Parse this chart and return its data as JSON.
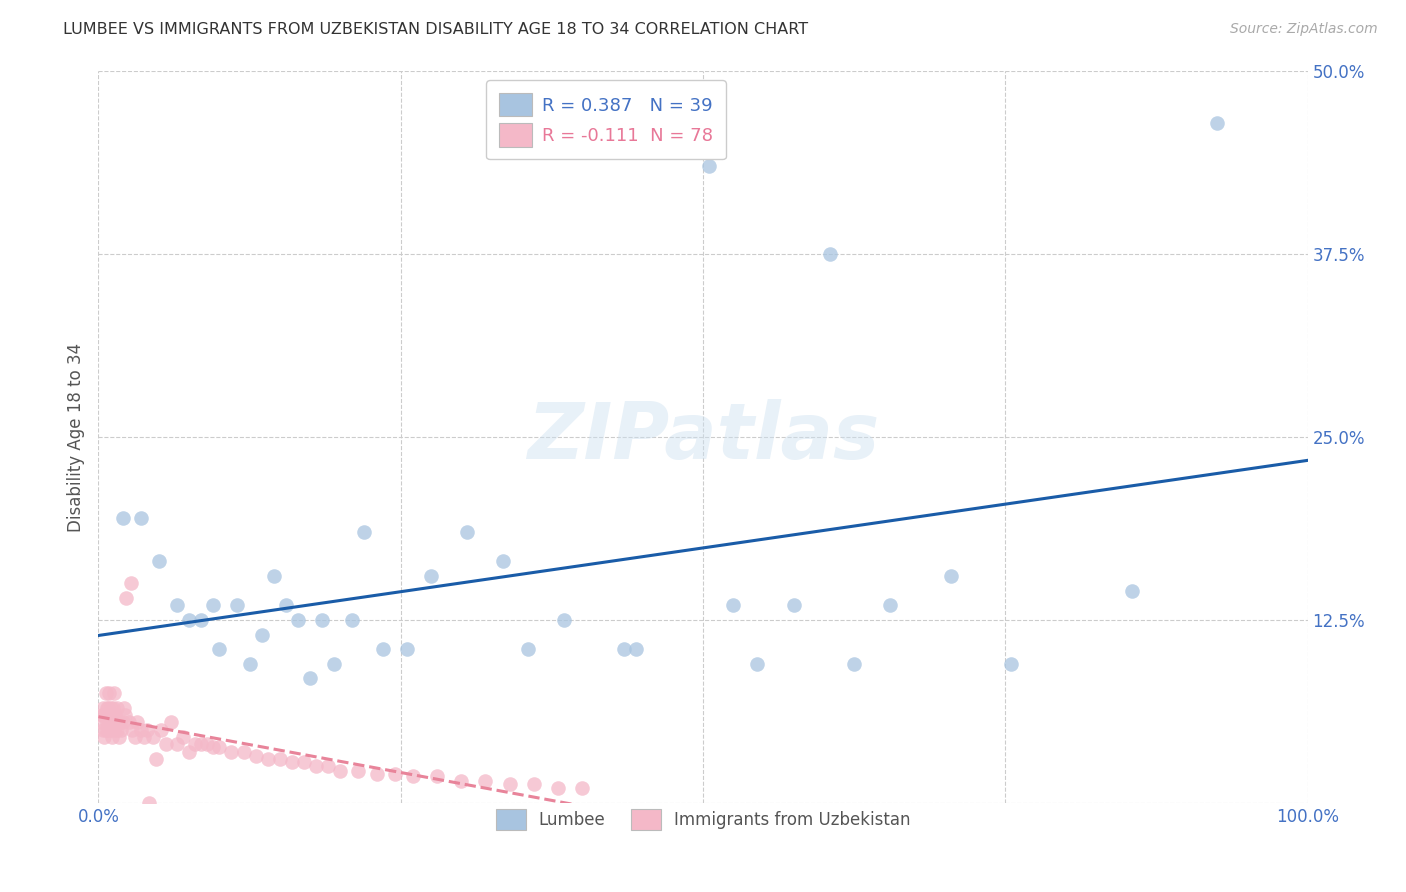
{
  "title": "LUMBEE VS IMMIGRANTS FROM UZBEKISTAN DISABILITY AGE 18 TO 34 CORRELATION CHART",
  "source": "Source: ZipAtlas.com",
  "ylabel": "Disability Age 18 to 34",
  "xlim": [
    0.0,
    1.0
  ],
  "ylim": [
    0.0,
    0.5
  ],
  "xticks": [
    0.0,
    0.25,
    0.5,
    0.75,
    1.0
  ],
  "xticklabels": [
    "0.0%",
    "",
    "",
    "",
    "100.0%"
  ],
  "yticks": [
    0.0,
    0.125,
    0.25,
    0.375,
    0.5
  ],
  "yticklabels": [
    "",
    "12.5%",
    "25.0%",
    "37.5%",
    "50.0%"
  ],
  "lumbee_R": 0.387,
  "lumbee_N": 39,
  "uzbek_R": -0.111,
  "uzbek_N": 78,
  "lumbee_color": "#a8c4e0",
  "uzbek_color": "#f4b8c8",
  "lumbee_line_color": "#1a5ca8",
  "uzbek_line_color": "#e8849a",
  "lumbee_x": [
    0.02,
    0.035,
    0.05,
    0.065,
    0.075,
    0.085,
    0.095,
    0.1,
    0.115,
    0.125,
    0.135,
    0.145,
    0.155,
    0.165,
    0.175,
    0.185,
    0.195,
    0.21,
    0.22,
    0.235,
    0.255,
    0.275,
    0.305,
    0.335,
    0.355,
    0.385,
    0.435,
    0.445,
    0.505,
    0.525,
    0.545,
    0.575,
    0.605,
    0.625,
    0.655,
    0.705,
    0.755,
    0.855,
    0.925
  ],
  "lumbee_y": [
    0.195,
    0.195,
    0.165,
    0.135,
    0.125,
    0.125,
    0.135,
    0.105,
    0.135,
    0.095,
    0.115,
    0.155,
    0.135,
    0.125,
    0.085,
    0.125,
    0.095,
    0.125,
    0.185,
    0.105,
    0.105,
    0.155,
    0.185,
    0.165,
    0.105,
    0.125,
    0.105,
    0.105,
    0.435,
    0.135,
    0.095,
    0.135,
    0.375,
    0.095,
    0.135,
    0.155,
    0.095,
    0.145,
    0.465
  ],
  "uzbek_x": [
    0.002,
    0.003,
    0.004,
    0.004,
    0.005,
    0.005,
    0.006,
    0.006,
    0.007,
    0.007,
    0.008,
    0.008,
    0.009,
    0.009,
    0.01,
    0.01,
    0.01,
    0.011,
    0.011,
    0.012,
    0.012,
    0.013,
    0.013,
    0.014,
    0.014,
    0.015,
    0.015,
    0.016,
    0.017,
    0.018,
    0.019,
    0.02,
    0.021,
    0.022,
    0.023,
    0.025,
    0.027,
    0.028,
    0.03,
    0.032,
    0.035,
    0.038,
    0.04,
    0.042,
    0.045,
    0.048,
    0.052,
    0.056,
    0.06,
    0.065,
    0.07,
    0.075,
    0.08,
    0.085,
    0.09,
    0.095,
    0.1,
    0.11,
    0.12,
    0.13,
    0.14,
    0.15,
    0.16,
    0.17,
    0.18,
    0.19,
    0.2,
    0.215,
    0.23,
    0.245,
    0.26,
    0.28,
    0.3,
    0.32,
    0.34,
    0.36,
    0.38,
    0.4
  ],
  "uzbek_y": [
    0.055,
    0.06,
    0.05,
    0.065,
    0.045,
    0.06,
    0.05,
    0.075,
    0.055,
    0.065,
    0.05,
    0.065,
    0.055,
    0.075,
    0.05,
    0.055,
    0.065,
    0.045,
    0.06,
    0.055,
    0.065,
    0.05,
    0.075,
    0.055,
    0.06,
    0.05,
    0.065,
    0.055,
    0.045,
    0.055,
    0.05,
    0.055,
    0.065,
    0.06,
    0.14,
    0.055,
    0.15,
    0.05,
    0.045,
    0.055,
    0.05,
    0.045,
    0.05,
    0.0,
    0.045,
    0.03,
    0.05,
    0.04,
    0.055,
    0.04,
    0.045,
    0.035,
    0.04,
    0.04,
    0.04,
    0.038,
    0.038,
    0.035,
    0.035,
    0.032,
    0.03,
    0.03,
    0.028,
    0.028,
    0.025,
    0.025,
    0.022,
    0.022,
    0.02,
    0.02,
    0.018,
    0.018,
    0.015,
    0.015,
    0.013,
    0.013,
    0.01,
    0.01
  ]
}
